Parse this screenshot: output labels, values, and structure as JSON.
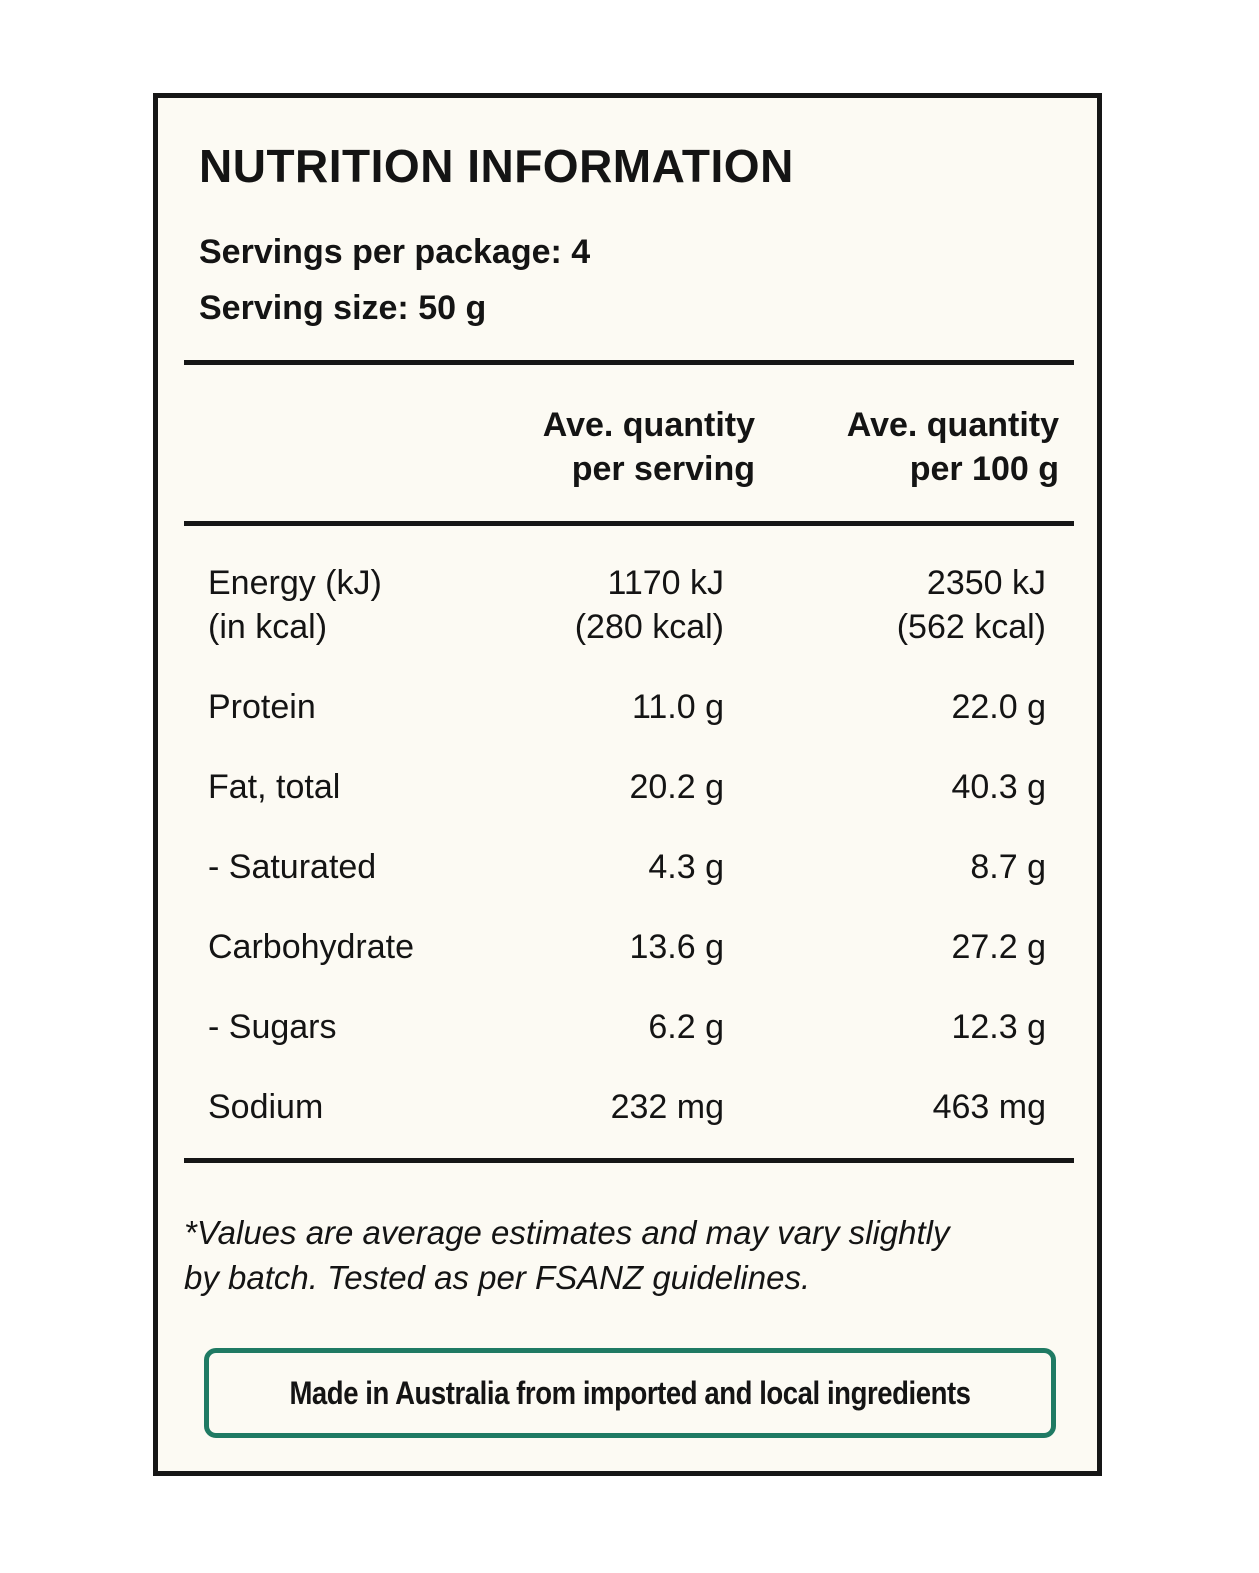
{
  "panel": {
    "title": "NUTRITION INFORMATION",
    "servings_per_package": "Servings per package: 4",
    "serving_size": "Serving size: 50 g"
  },
  "table": {
    "headers": {
      "per_serving": [
        "Ave. quantity",
        "per serving"
      ],
      "per_100g": [
        "Ave. quantity",
        "per 100 g"
      ]
    },
    "rows": [
      {
        "name": [
          "Energy (kJ)",
          "(in kcal)"
        ],
        "per_serving": [
          "1170 kJ",
          "(280 kcal)"
        ],
        "per_100g": [
          "2350 kJ",
          "(562 kcal)"
        ]
      },
      {
        "name": [
          "Protein"
        ],
        "per_serving": [
          "11.0 g"
        ],
        "per_100g": [
          "22.0 g"
        ]
      },
      {
        "name": [
          "Fat, total"
        ],
        "per_serving": [
          "20.2 g"
        ],
        "per_100g": [
          "40.3 g"
        ]
      },
      {
        "name": [
          "- Saturated"
        ],
        "per_serving": [
          "4.3 g"
        ],
        "per_100g": [
          "8.7 g"
        ]
      },
      {
        "name": [
          "Carbohydrate"
        ],
        "per_serving": [
          "13.6 g"
        ],
        "per_100g": [
          "27.2 g"
        ]
      },
      {
        "name": [
          "- Sugars"
        ],
        "per_serving": [
          "6.2 g"
        ],
        "per_100g": [
          "12.3 g"
        ]
      },
      {
        "name": [
          "Sodium"
        ],
        "per_serving": [
          "232 mg"
        ],
        "per_100g": [
          "463 mg"
        ]
      }
    ]
  },
  "footnote": [
    "*Values are average estimates and may vary slightly",
    "by batch. Tested as per FSANZ guidelines."
  ],
  "origin_statement": "Made in Australia from imported and local ingredients",
  "colors": {
    "panel_background": "#fcfaf3",
    "border": "#161616",
    "origin_border": "#1f7a63"
  }
}
